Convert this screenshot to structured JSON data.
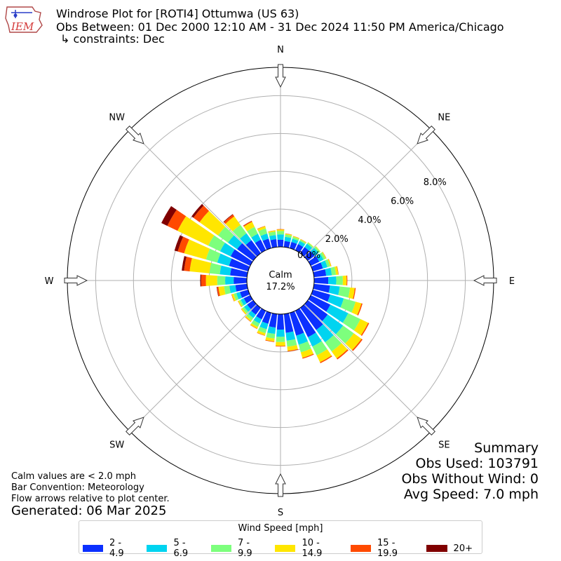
{
  "header": {
    "title_line1": "Windrose Plot for [ROTI4] Ottumwa (US 63)",
    "title_line2": "Obs Between: 01 Dec 2000 12:10 AM - 31 Dec 2024 11:50 PM America/Chicago",
    "title_line3": "↳ constraints: Dec",
    "logo_text": "IEM"
  },
  "summary": {
    "heading": "Summary",
    "obs_used": "Obs Used: 103791",
    "obs_without_wind": "Obs Without Wind: 0",
    "avg_speed": "Avg Speed: 7.0 mph"
  },
  "notes": {
    "line1": "Calm values are < 2.0 mph",
    "line2": "Bar Convention: Meteorology",
    "line3": "Flow arrows relative to plot center."
  },
  "generated": "Generated: 06 Mar 2025",
  "legend": {
    "title": "Wind Speed [mph]",
    "items": [
      {
        "label": "2 - 4.9",
        "color": "#0b30ff"
      },
      {
        "label": "5 - 6.9",
        "color": "#00d4f0"
      },
      {
        "label": "7 - 9.9",
        "color": "#7dff7d"
      },
      {
        "label": "10 - 14.9",
        "color": "#ffe600"
      },
      {
        "label": "15 - 19.9",
        "color": "#ff4a00"
      },
      {
        "label": "20+",
        "color": "#800000"
      }
    ]
  },
  "chart_data": {
    "type": "windrose",
    "calm_label": "Calm",
    "calm_value": "17.2%",
    "calm_percent": 17.2,
    "radial_ticks": [
      "0.0%",
      "2.0%",
      "4.0%",
      "6.0%",
      "8.0%"
    ],
    "radial_tick_values": [
      0,
      2,
      4,
      6,
      8
    ],
    "radial_max": 9.5,
    "compass_labels": {
      "N": "N",
      "NE": "NE",
      "E": "E",
      "SE": "SE",
      "S": "S",
      "SW": "SW",
      "W": "W",
      "NW": "NW"
    },
    "bar_convention": "meteorology",
    "directions": [
      0,
      10,
      20,
      30,
      40,
      50,
      60,
      70,
      80,
      90,
      100,
      110,
      120,
      130,
      140,
      150,
      160,
      170,
      180,
      190,
      200,
      210,
      220,
      230,
      240,
      250,
      260,
      270,
      280,
      290,
      300,
      310,
      320,
      330,
      340,
      350
    ],
    "series": [
      {
        "name": "2 - 4.9",
        "color": "#0b30ff",
        "values": [
          0.38,
          0.32,
          0.34,
          0.36,
          0.4,
          0.45,
          0.5,
          0.55,
          0.65,
          0.75,
          0.85,
          0.95,
          1.15,
          1.3,
          1.45,
          1.55,
          1.25,
          1.0,
          0.82,
          0.72,
          0.6,
          0.5,
          0.45,
          0.4,
          0.38,
          0.45,
          0.62,
          0.7,
          0.9,
          1.05,
          1.15,
          1.05,
          0.85,
          0.62,
          0.52,
          0.42
        ]
      },
      {
        "name": "5 - 6.9",
        "color": "#00d4f0",
        "values": [
          0.28,
          0.22,
          0.18,
          0.18,
          0.22,
          0.25,
          0.25,
          0.25,
          0.3,
          0.42,
          0.52,
          0.75,
          1.05,
          1.0,
          0.8,
          0.55,
          0.5,
          0.42,
          0.38,
          0.34,
          0.3,
          0.25,
          0.22,
          0.2,
          0.18,
          0.2,
          0.32,
          0.45,
          0.55,
          0.65,
          0.62,
          0.6,
          0.45,
          0.35,
          0.28,
          0.22
        ]
      },
      {
        "name": "7 - 9.9",
        "color": "#7dff7d",
        "values": [
          0.18,
          0.12,
          0.1,
          0.08,
          0.08,
          0.1,
          0.12,
          0.15,
          0.22,
          0.35,
          0.55,
          0.65,
          0.72,
          0.7,
          0.6,
          0.52,
          0.42,
          0.32,
          0.28,
          0.25,
          0.22,
          0.2,
          0.15,
          0.12,
          0.1,
          0.15,
          0.28,
          0.42,
          0.55,
          0.62,
          0.7,
          0.65,
          0.55,
          0.4,
          0.28,
          0.18
        ]
      },
      {
        "name": "10 - 14.9",
        "color": "#ffe600",
        "values": [
          0.08,
          0.05,
          0.04,
          0.03,
          0.02,
          0.03,
          0.04,
          0.06,
          0.12,
          0.2,
          0.25,
          0.32,
          0.45,
          0.5,
          0.45,
          0.4,
          0.3,
          0.22,
          0.2,
          0.15,
          0.12,
          0.1,
          0.08,
          0.07,
          0.06,
          0.1,
          0.3,
          0.6,
          1.05,
          1.2,
          1.8,
          1.2,
          0.55,
          0.3,
          0.12,
          0.06
        ]
      },
      {
        "name": "15 - 19.9",
        "color": "#ff4a00",
        "values": [
          0.02,
          0.01,
          0.01,
          0.01,
          0.0,
          0.0,
          0.01,
          0.01,
          0.02,
          0.04,
          0.05,
          0.06,
          0.06,
          0.07,
          0.07,
          0.06,
          0.05,
          0.04,
          0.03,
          0.03,
          0.02,
          0.02,
          0.02,
          0.01,
          0.01,
          0.02,
          0.08,
          0.25,
          0.3,
          0.35,
          0.6,
          0.4,
          0.12,
          0.05,
          0.02,
          0.01
        ]
      },
      {
        "name": "20+",
        "color": "#800000",
        "values": [
          0.0,
          0.0,
          0.0,
          0.0,
          0.0,
          0.0,
          0.0,
          0.0,
          0.0,
          0.0,
          0.0,
          0.0,
          0.0,
          0.0,
          0.0,
          0.0,
          0.0,
          0.0,
          0.0,
          0.0,
          0.0,
          0.0,
          0.0,
          0.0,
          0.0,
          0.0,
          0.02,
          0.05,
          0.12,
          0.18,
          0.35,
          0.12,
          0.03,
          0.01,
          0.0,
          0.0
        ]
      }
    ]
  }
}
